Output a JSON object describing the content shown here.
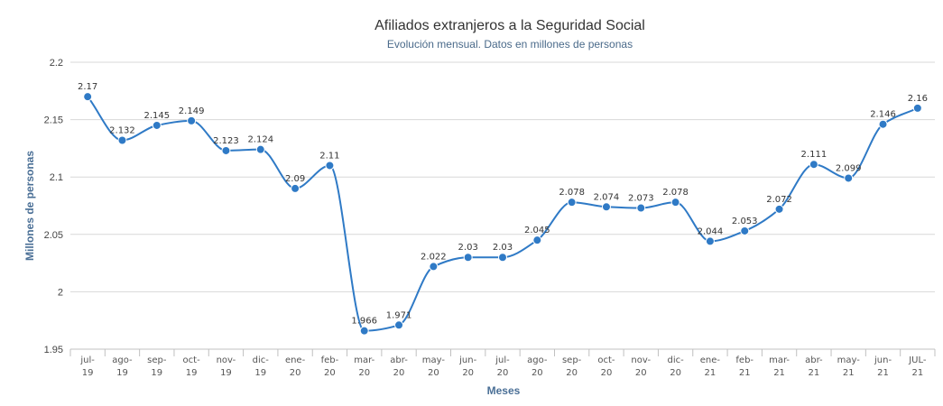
{
  "chart_data": {
    "type": "line",
    "title": "Afiliados extranjeros a la Seguridad Social",
    "subtitle": "Evolución mensual. Datos en millones de personas",
    "xlabel": "Meses",
    "ylabel": "Millones de personas",
    "categories": [
      [
        "jul-",
        "19"
      ],
      [
        "ago-",
        "19"
      ],
      [
        "sep-",
        "19"
      ],
      [
        "oct-",
        "19"
      ],
      [
        "nov-",
        "19"
      ],
      [
        "dic-",
        "19"
      ],
      [
        "ene-",
        "20"
      ],
      [
        "feb-",
        "20"
      ],
      [
        "mar-",
        "20"
      ],
      [
        "abr-",
        "20"
      ],
      [
        "may-",
        "20"
      ],
      [
        "jun-",
        "20"
      ],
      [
        "jul-",
        "20"
      ],
      [
        "ago-",
        "20"
      ],
      [
        "sep-",
        "20"
      ],
      [
        "oct-",
        "20"
      ],
      [
        "nov-",
        "20"
      ],
      [
        "dic-",
        "20"
      ],
      [
        "ene-",
        "21"
      ],
      [
        "feb-",
        "21"
      ],
      [
        "mar-",
        "21"
      ],
      [
        "abr-",
        "21"
      ],
      [
        "may-",
        "21"
      ],
      [
        "jun-",
        "21"
      ],
      [
        "JUL-",
        "21"
      ]
    ],
    "series": [
      {
        "values": [
          2.17,
          2.132,
          2.145,
          2.149,
          2.123,
          2.124,
          2.09,
          2.11,
          1.966,
          1.971,
          2.022,
          2.03,
          2.03,
          2.045,
          2.078,
          2.074,
          2.073,
          2.078,
          2.044,
          2.053,
          2.072,
          2.111,
          2.099,
          2.146,
          2.16
        ]
      }
    ],
    "ylim": [
      1.95,
      2.2
    ],
    "yticks": [
      "1.95",
      "2",
      "2.05",
      "2.1",
      "2.15",
      "2.2"
    ],
    "ytick_values": [
      1.95,
      2.0,
      2.05,
      2.1,
      2.15,
      2.2
    ],
    "grid": true,
    "legend": "none",
    "colors": {
      "series": "#2f7ac6",
      "grid": "#d8d8d8",
      "axis_title": "#4a6f96"
    }
  }
}
